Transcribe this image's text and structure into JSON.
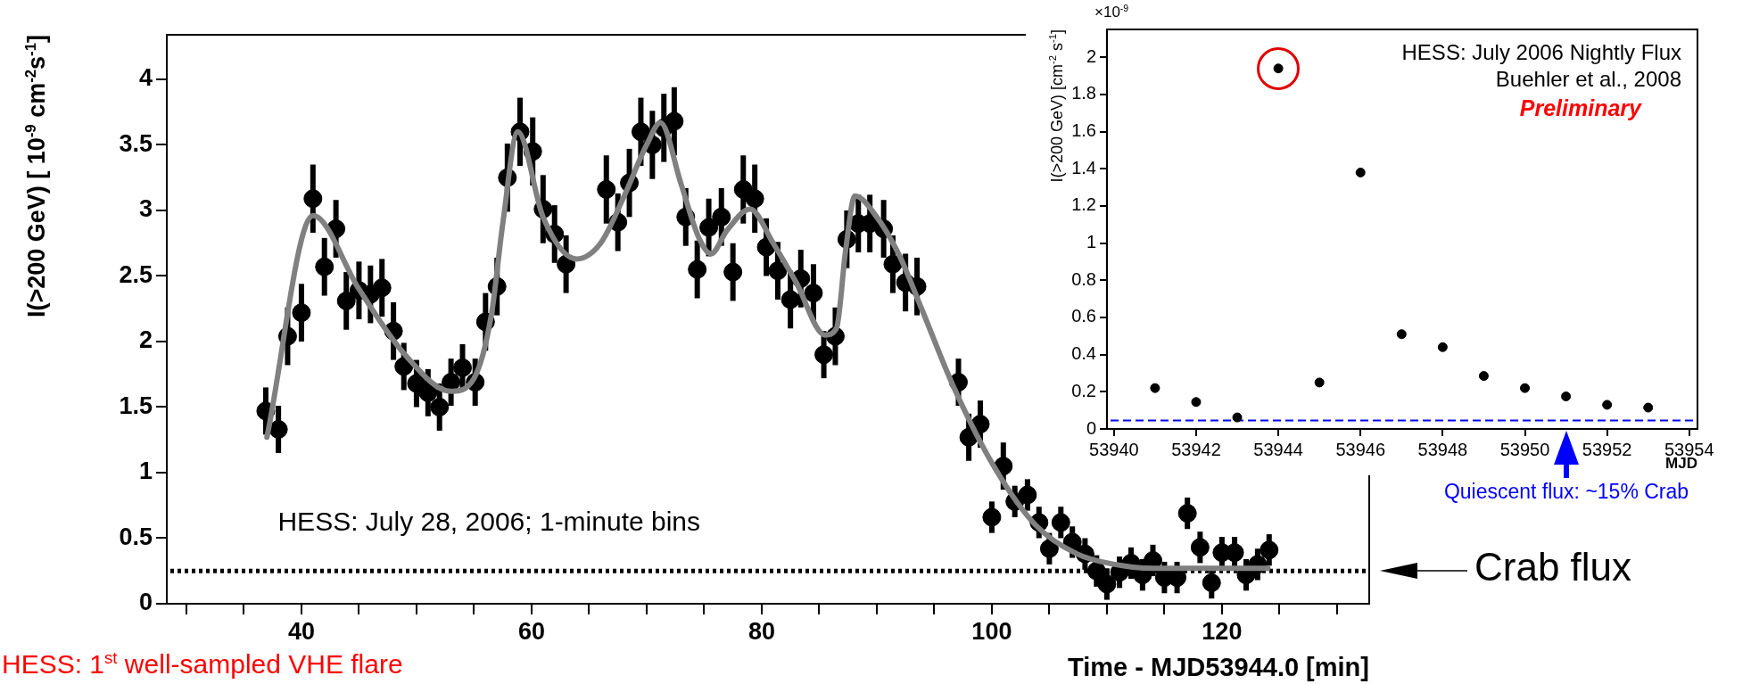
{
  "chart_data": [
    {
      "type": "scatter",
      "xlabel": "Time - MJD53944.0 [min]",
      "ylabel": "I(>200 GeV) [ 10$^{-9}$ cm$^{-2}$s$^{-1}$]",
      "xlim": [
        28.3,
        132.8
      ],
      "ylim": [
        0,
        4.34
      ],
      "xticks": [
        {
          "value": 30,
          "label": null
        },
        {
          "value": 35,
          "label": null
        },
        40,
        {
          "value": 45,
          "label": null
        },
        {
          "value": 50,
          "label": null
        },
        {
          "value": 55,
          "label": null
        },
        60,
        {
          "value": 65,
          "label": null
        },
        {
          "value": 70,
          "label": null
        },
        {
          "value": 75,
          "label": null
        },
        80,
        {
          "value": 85,
          "label": null
        },
        {
          "value": 90,
          "label": null
        },
        {
          "value": 95,
          "label": null
        },
        100,
        {
          "value": 105,
          "label": null
        },
        {
          "value": 110,
          "label": null
        },
        {
          "value": 115,
          "label": null
        },
        120,
        {
          "value": 125,
          "label": null
        },
        {
          "value": 130,
          "label": null
        }
      ],
      "yticks": [
        0,
        0.5,
        1,
        1.5,
        2,
        2.5,
        3,
        3.5,
        4
      ],
      "grid": false,
      "legend": false,
      "series": [
        {
          "marker": "circle",
          "color": "#000000",
          "x": [
            36.9,
            38.0,
            38.8,
            40.0,
            41.0,
            42.0,
            43.0,
            43.9,
            45.0,
            46.0,
            47.0,
            48.0,
            48.9,
            50.0,
            51.0,
            52.0,
            53.0,
            54.0,
            55.1,
            56.0,
            57.0,
            57.9,
            59.0,
            60.1,
            61.0,
            62.0,
            63.0,
            66.5,
            67.5,
            68.5,
            69.5,
            70.5,
            71.5,
            72.4,
            73.4,
            74.4,
            75.4,
            76.5,
            77.5,
            78.4,
            79.4,
            80.4,
            81.4,
            82.5,
            83.4,
            84.5,
            85.4,
            86.4,
            87.4,
            88.4,
            89.4,
            90.6,
            91.4,
            92.5,
            93.5,
            97.1,
            98.0,
            99.0,
            100.0,
            101.0,
            102.0,
            103.1,
            104.1,
            105.0,
            106.0,
            107.0,
            108.1,
            109.1,
            110.0,
            111.1,
            112.1,
            113.1,
            114.0,
            115.0,
            116.1,
            117.0,
            118.1,
            119.1,
            120.0,
            121.1,
            122.1,
            123.1,
            124.1
          ],
          "values": [
            1.47,
            1.33,
            2.04,
            2.22,
            3.09,
            2.57,
            2.86,
            2.31,
            2.39,
            2.36,
            2.41,
            2.08,
            1.81,
            1.68,
            1.61,
            1.5,
            1.69,
            1.8,
            1.69,
            2.15,
            2.42,
            3.25,
            3.6,
            3.45,
            3.01,
            2.82,
            2.59,
            3.16,
            2.91,
            3.21,
            3.6,
            3.5,
            3.63,
            3.68,
            2.95,
            2.55,
            2.87,
            2.95,
            2.53,
            3.16,
            3.09,
            2.72,
            2.54,
            2.32,
            2.48,
            2.37,
            1.9,
            2.04,
            2.78,
            2.9,
            2.9,
            2.86,
            2.59,
            2.45,
            2.42,
            1.69,
            1.27,
            1.37,
            0.66,
            1.05,
            0.78,
            0.83,
            0.62,
            0.42,
            0.62,
            0.47,
            0.38,
            0.25,
            0.15,
            0.24,
            0.31,
            0.22,
            0.33,
            0.2,
            0.2,
            0.69,
            0.43,
            0.16,
            0.39,
            0.39,
            0.22,
            0.3,
            0.41
          ],
          "errors": [
            0.18,
            0.18,
            0.22,
            0.22,
            0.26,
            0.22,
            0.22,
            0.22,
            0.22,
            0.22,
            0.22,
            0.22,
            0.18,
            0.18,
            0.18,
            0.18,
            0.18,
            0.18,
            0.18,
            0.22,
            0.22,
            0.26,
            0.26,
            0.26,
            0.26,
            0.22,
            0.22,
            0.26,
            0.22,
            0.26,
            0.26,
            0.26,
            0.26,
            0.26,
            0.22,
            0.22,
            0.22,
            0.22,
            0.22,
            0.26,
            0.26,
            0.22,
            0.22,
            0.22,
            0.22,
            0.22,
            0.18,
            0.22,
            0.22,
            0.22,
            0.22,
            0.22,
            0.22,
            0.22,
            0.22,
            0.18,
            0.18,
            0.18,
            0.12,
            0.18,
            0.12,
            0.12,
            0.12,
            0.12,
            0.12,
            0.12,
            0.12,
            0.12,
            0.12,
            0.12,
            0.12,
            0.12,
            0.12,
            0.12,
            0.12,
            0.12,
            0.12,
            0.12,
            0.12,
            0.12,
            0.12,
            0.12,
            0.12
          ]
        },
        {
          "type": "line",
          "marker": "none",
          "color": "#808080",
          "x": [
            37,
            41,
            45,
            49,
            53,
            55,
            56.5,
            57.5,
            58.8,
            61,
            63.9,
            66,
            68,
            70,
            71.2,
            73,
            74.5,
            75.6,
            77,
            79,
            81,
            83,
            85.5,
            86.5,
            87.3,
            88.1,
            90,
            92,
            93.9,
            96.7,
            100.3,
            103.8,
            107.4,
            110.7,
            114,
            124
          ],
          "values": [
            1.27,
            2.96,
            2.4,
            1.9,
            1.62,
            1.72,
            2.2,
            2.9,
            3.6,
            2.95,
            2.63,
            2.75,
            3.1,
            3.5,
            3.67,
            3.2,
            2.8,
            2.67,
            2.85,
            3.01,
            2.75,
            2.45,
            2.05,
            2.1,
            2.7,
            3.11,
            2.95,
            2.65,
            2.25,
            1.65,
            1.03,
            0.6,
            0.38,
            0.3,
            0.27,
            0.27
          ]
        }
      ],
      "ref_lines": [
        {
          "axis": "y",
          "value": 0.25,
          "label": "Crab flux",
          "color": "#000000",
          "line_style": "dotted"
        }
      ],
      "annotations": [
        "HESS: July 28, 2006; 1-minute bins",
        "HESS: 1$^{st}$ well-sampled VHE flare"
      ]
    },
    {
      "type": "scatter",
      "xlabel": "MJD",
      "ylabel": "I(>200 GeV) [cm$^{-2}$ s$^{-1}$]",
      "xlim": [
        53939.83,
        53954.2
      ],
      "ylim": [
        0,
        2.15
      ],
      "xticks": [
        53940,
        53942,
        53944,
        53946,
        53948,
        53950,
        53952,
        53954
      ],
      "yticks": [
        0,
        0.2,
        0.4,
        0.6,
        0.8,
        1,
        1.2,
        1.4,
        1.6,
        1.8,
        2
      ],
      "marker": "circle",
      "grid": false,
      "legend": false,
      "series": [
        {
          "color": "#000000",
          "x": [
            53941,
            53942,
            53943,
            53944,
            53945,
            53946,
            53947,
            53948,
            53949,
            53950,
            53951,
            53952,
            53953
          ],
          "values": [
            0.22,
            0.145,
            0.062,
            1.94,
            0.25,
            1.38,
            0.51,
            0.44,
            0.285,
            0.22,
            0.175,
            0.13,
            0.115
          ],
          "errors": [
            null,
            null,
            null,
            null,
            null,
            null,
            null,
            null,
            0.02,
            null,
            null,
            null,
            0.02
          ]
        }
      ],
      "ref_lines": [
        {
          "axis": "y",
          "value": 0.045,
          "color": "#0000ff",
          "line_style": "dashed"
        }
      ],
      "annotations": [
        "×10$^{-9}$",
        "HESS: July 2006 Nightly Flux",
        "Buehler et al., 2008",
        "Preliminary",
        "Quiescent flux: ~15% Crab"
      ]
    }
  ]
}
